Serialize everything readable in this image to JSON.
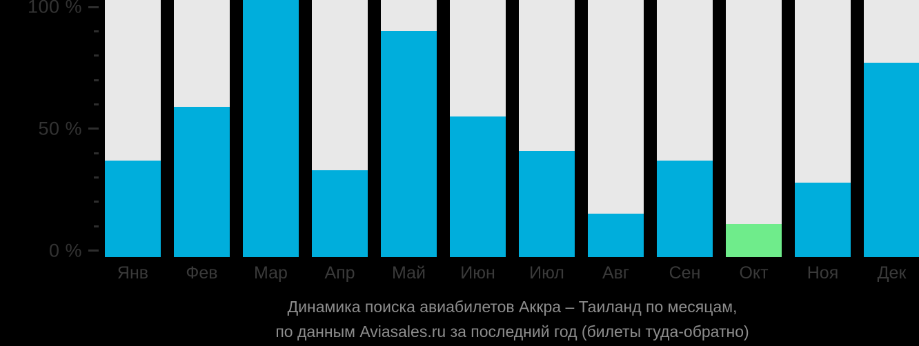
{
  "page": {
    "background_color": "#000000"
  },
  "chart_data": {
    "type": "bar",
    "categories": [
      "Янв",
      "Фев",
      "Мар",
      "Апр",
      "Май",
      "Июн",
      "Июл",
      "Авг",
      "Сен",
      "Окт",
      "Ноя",
      "Дек"
    ],
    "values": [
      37,
      59,
      100,
      33,
      90,
      55,
      41,
      15,
      37,
      11,
      28,
      77
    ],
    "highlight_index": 9,
    "title_line1": "Динамика поиска авиабилетов Аккра – Таиланд по месяцам,",
    "title_line2": "по данным Aviasales.ru за последний год (билеты туда-обратно)",
    "xlabel": "",
    "ylabel": "",
    "ylim": [
      0,
      100
    ],
    "ytick_labels": [
      "0 %",
      "50 %",
      "100 %"
    ],
    "yticks_labeled": [
      0,
      50,
      100
    ],
    "ytick_minor_step": 10,
    "ytick_label_suffix": " %",
    "legend": "none",
    "grid": "off",
    "colors": {
      "bar_fill": "#00aedc",
      "bar_highlight": "#6fec8b",
      "bar_background": "#e8e8e8",
      "axis_tick": "#2e2e2e",
      "axis_text": "#333333",
      "month_text": "#3a3a3a",
      "title_text": "#8d8d8d",
      "background": "#000000"
    }
  }
}
